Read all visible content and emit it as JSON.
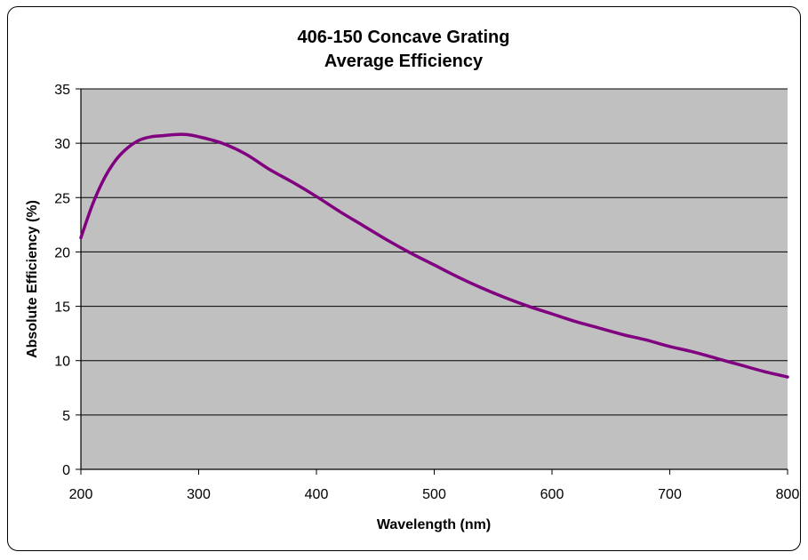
{
  "chart_data": {
    "type": "line",
    "title": [
      "406-150 Concave Grating",
      "Average Efficiency"
    ],
    "xlabel": "Wavelength (nm)",
    "ylabel": "Absolute Efficiency (%)",
    "xlim": [
      200,
      800
    ],
    "ylim": [
      0,
      35
    ],
    "xticks": [
      200,
      300,
      400,
      500,
      600,
      700,
      800
    ],
    "yticks": [
      0,
      5,
      10,
      15,
      20,
      25,
      30,
      35
    ],
    "grid": "horizontal",
    "plot_background": "#c0c0c0",
    "series": [
      {
        "color": "#800080",
        "x": [
          200,
          210,
          220,
          230,
          240,
          250,
          260,
          270,
          280,
          290,
          300,
          320,
          340,
          360,
          380,
          400,
          420,
          440,
          460,
          480,
          500,
          520,
          540,
          560,
          580,
          600,
          620,
          640,
          660,
          680,
          700,
          720,
          740,
          760,
          780,
          800
        ],
        "y": [
          21.3,
          24.4,
          26.8,
          28.5,
          29.6,
          30.3,
          30.6,
          30.7,
          30.8,
          30.8,
          30.6,
          30.0,
          29.0,
          27.6,
          26.4,
          25.1,
          23.7,
          22.4,
          21.1,
          19.9,
          18.8,
          17.7,
          16.7,
          15.8,
          15.0,
          14.3,
          13.6,
          13.0,
          12.4,
          11.9,
          11.3,
          10.8,
          10.2,
          9.6,
          9.0,
          8.5
        ]
      }
    ]
  }
}
